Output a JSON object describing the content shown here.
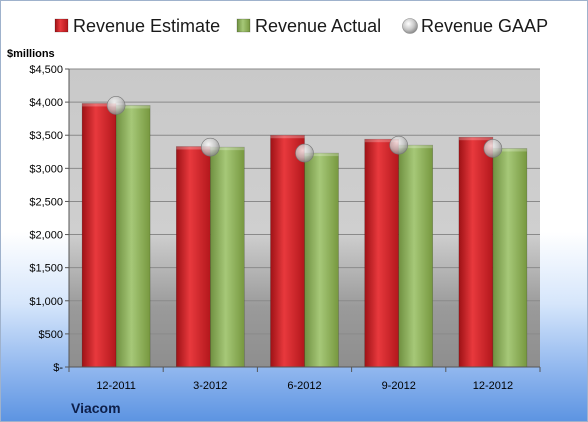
{
  "chart_data": {
    "type": "bar",
    "company": "Viacom",
    "ylabel": "$millions",
    "categories": [
      "12-2011",
      "3-2012",
      "6-2012",
      "9-2012",
      "12-2012"
    ],
    "series": [
      {
        "name": "Revenue Estimate",
        "kind": "bar",
        "color": "#d8262b",
        "values": [
          3980,
          3330,
          3500,
          3440,
          3470
        ]
      },
      {
        "name": "Revenue Actual",
        "kind": "bar",
        "color": "#8caf5a",
        "values": [
          3950,
          3320,
          3230,
          3350,
          3300
        ]
      },
      {
        "name": "Revenue GAAP",
        "kind": "marker",
        "color": "#c8c8c8",
        "values": [
          3950,
          3320,
          3230,
          3350,
          3300
        ]
      }
    ],
    "ylim": [
      0,
      4500
    ],
    "yticks": [
      0,
      500,
      1000,
      1500,
      2000,
      2500,
      3000,
      3500,
      4000,
      4500
    ],
    "ytick_labels": [
      "$-",
      "$500",
      "$1,000",
      "$1,500",
      "$2,000",
      "$2,500",
      "$3,000",
      "$3,500",
      "$4,000",
      "$4,500"
    ],
    "grid": true,
    "legend_position": "top"
  }
}
